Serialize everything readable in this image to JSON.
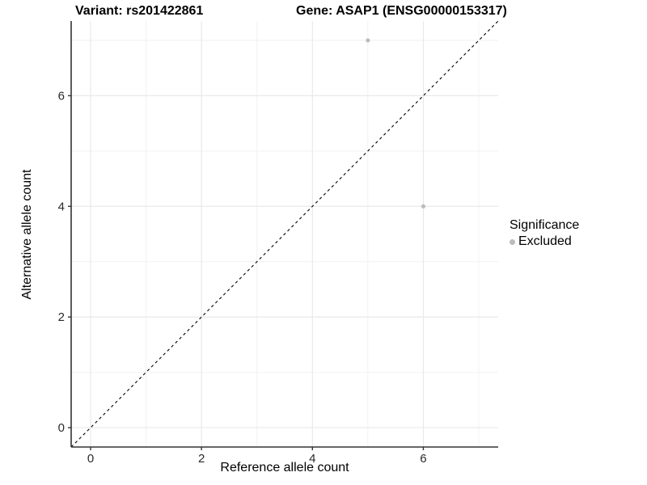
{
  "titles": {
    "variant": "Variant: rs201422861",
    "gene": "Gene: ASAP1 (ENSG00000153317)"
  },
  "legend": {
    "title": "Significance",
    "items": [
      {
        "label": "Excluded",
        "color": "#bcbcbc"
      }
    ]
  },
  "chart_data": {
    "type": "scatter",
    "title": "Variant: rs201422861    Gene: ASAP1 (ENSG00000153317)",
    "xlabel": "Reference allele count",
    "ylabel": "Alternative allele count",
    "xlim": [
      -0.35,
      7.35
    ],
    "ylim": [
      -0.35,
      7.35
    ],
    "x_major_ticks": [
      0,
      2,
      4,
      6
    ],
    "y_major_ticks": [
      0,
      2,
      4,
      6
    ],
    "x_minor_gridlines": [
      1,
      3,
      5,
      7
    ],
    "y_minor_gridlines": [
      1,
      3,
      5,
      7
    ],
    "grid": true,
    "legend_position": "right",
    "series": [
      {
        "name": "Excluded",
        "color": "#bcbcbc",
        "points": [
          {
            "x": 5,
            "y": 7
          },
          {
            "x": 6,
            "y": 4
          }
        ]
      }
    ],
    "reference_line": {
      "style": "dashed",
      "slope": 1,
      "intercept": 0,
      "color": "#000000"
    },
    "colors": {
      "grid_major": "#e9e9e9",
      "grid_minor": "#f2f2f2",
      "axis_line": "#333333",
      "tick_mark": "#333333",
      "tick_label": "#2b2b2b",
      "background": "#ffffff"
    }
  }
}
